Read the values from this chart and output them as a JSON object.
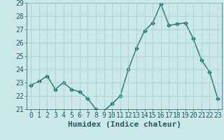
{
  "x": [
    0,
    1,
    2,
    3,
    4,
    5,
    6,
    7,
    8,
    9,
    10,
    11,
    12,
    13,
    14,
    15,
    16,
    17,
    18,
    19,
    20,
    21,
    22,
    23
  ],
  "y": [
    22.8,
    23.1,
    23.5,
    22.5,
    23.0,
    22.5,
    22.3,
    21.8,
    21.0,
    20.9,
    21.4,
    22.0,
    24.0,
    25.6,
    26.9,
    27.5,
    28.9,
    27.3,
    27.4,
    27.5,
    26.3,
    24.7,
    23.8,
    21.8
  ],
  "title": "",
  "xlabel": "Humidex (Indice chaleur)",
  "ylabel": "",
  "xlim": [
    -0.5,
    23.5
  ],
  "ylim": [
    21,
    29
  ],
  "yticks": [
    21,
    22,
    23,
    24,
    25,
    26,
    27,
    28,
    29
  ],
  "xticks": [
    0,
    1,
    2,
    3,
    4,
    5,
    6,
    7,
    8,
    9,
    10,
    11,
    12,
    13,
    14,
    15,
    16,
    17,
    18,
    19,
    20,
    21,
    22,
    23
  ],
  "line_color": "#1a7a6e",
  "marker": "D",
  "marker_size": 2.5,
  "bg_color": "#cce8e8",
  "grid_color": "#aacccc",
  "tick_color": "#1a5a6a",
  "label_color": "#1a5a6a",
  "xlabel_fontsize": 8,
  "tick_fontsize": 7
}
